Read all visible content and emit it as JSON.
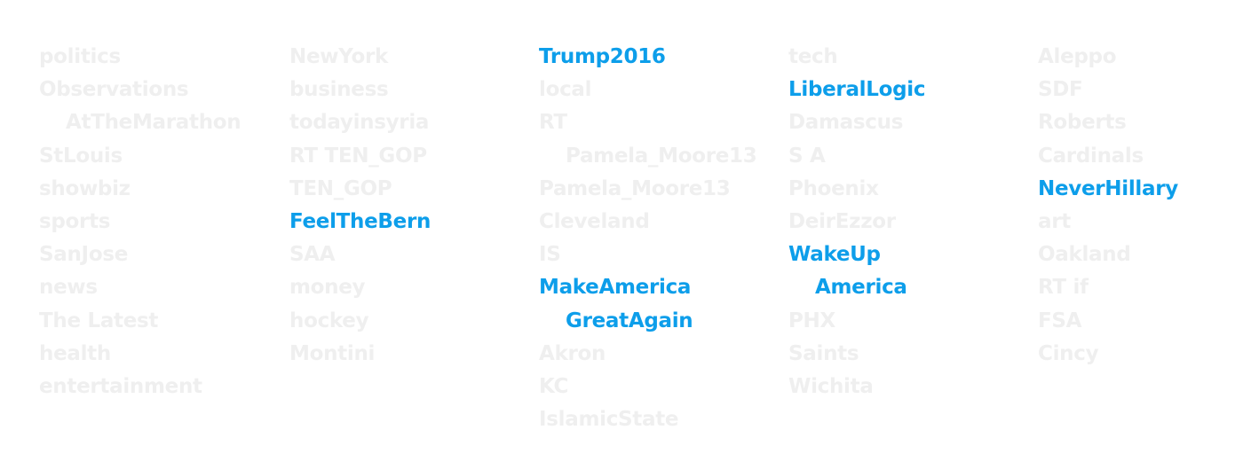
{
  "columns": [
    {
      "terms": [
        {
          "text": "politics",
          "highlight": false
        },
        {
          "text": "Observations",
          "highlight": false
        },
        {
          "text": "AtTheMarathon",
          "highlight": false,
          "continuation": true
        },
        {
          "text": "StLouis",
          "highlight": false
        },
        {
          "text": "showbiz",
          "highlight": false
        },
        {
          "text": "sports",
          "highlight": false
        },
        {
          "text": "SanJose",
          "highlight": false
        },
        {
          "text": "news",
          "highlight": false
        },
        {
          "text": "The Latest",
          "highlight": false
        },
        {
          "text": "health",
          "highlight": false
        },
        {
          "text": "entertainment",
          "highlight": false
        }
      ]
    },
    {
      "terms": [
        {
          "text": "NewYork",
          "highlight": false
        },
        {
          "text": "business",
          "highlight": false
        },
        {
          "text": "todayinsyria",
          "highlight": false
        },
        {
          "text": "RT TEN_GOP",
          "highlight": false
        },
        {
          "text": "TEN_GOP",
          "highlight": false
        },
        {
          "text": "FeelTheBern",
          "highlight": true
        },
        {
          "text": "SAA",
          "highlight": false
        },
        {
          "text": "money",
          "highlight": false
        },
        {
          "text": "hockey",
          "highlight": false
        },
        {
          "text": "Montini",
          "highlight": false
        }
      ]
    },
    {
      "terms": [
        {
          "text": "Trump2016",
          "highlight": true
        },
        {
          "text": "local",
          "highlight": false
        },
        {
          "text": "RT",
          "highlight": false
        },
        {
          "text": "Pamela_Moore13",
          "highlight": false,
          "continuation": true
        },
        {
          "text": "Pamela_Moore13",
          "highlight": false
        },
        {
          "text": "Cleveland",
          "highlight": false
        },
        {
          "text": "IS",
          "highlight": false
        },
        {
          "text": "MakeAmerica",
          "highlight": true
        },
        {
          "text": "GreatAgain",
          "highlight": true,
          "continuation": true
        },
        {
          "text": "Akron",
          "highlight": false
        },
        {
          "text": "KC",
          "highlight": false
        },
        {
          "text": "IslamicState",
          "highlight": false
        }
      ]
    },
    {
      "terms": [
        {
          "text": "tech",
          "highlight": false
        },
        {
          "text": "LiberalLogic",
          "highlight": true
        },
        {
          "text": "Damascus",
          "highlight": false
        },
        {
          "text": "S A",
          "highlight": false
        },
        {
          "text": "Phoenix",
          "highlight": false
        },
        {
          "text": "DeirEzzor",
          "highlight": false
        },
        {
          "text": "WakeUp",
          "highlight": true
        },
        {
          "text": "America",
          "highlight": true,
          "continuation": true
        },
        {
          "text": "PHX",
          "highlight": false
        },
        {
          "text": "Saints",
          "highlight": false
        },
        {
          "text": "Wichita",
          "highlight": false
        }
      ]
    },
    {
      "terms": [
        {
          "text": "Aleppo",
          "highlight": false
        },
        {
          "text": "SDF",
          "highlight": false
        },
        {
          "text": "Roberts",
          "highlight": false
        },
        {
          "text": "Cardinals",
          "highlight": false
        },
        {
          "text": "NeverHillary",
          "highlight": true
        },
        {
          "text": "art",
          "highlight": false
        },
        {
          "text": "Oakland",
          "highlight": false
        },
        {
          "text": "RT if",
          "highlight": false
        },
        {
          "text": "FSA",
          "highlight": false
        },
        {
          "text": "Cincy",
          "highlight": false
        }
      ]
    }
  ],
  "colors": {
    "highlight": "#0d9eea",
    "muted": "#efefef",
    "background": "#ffffff"
  }
}
